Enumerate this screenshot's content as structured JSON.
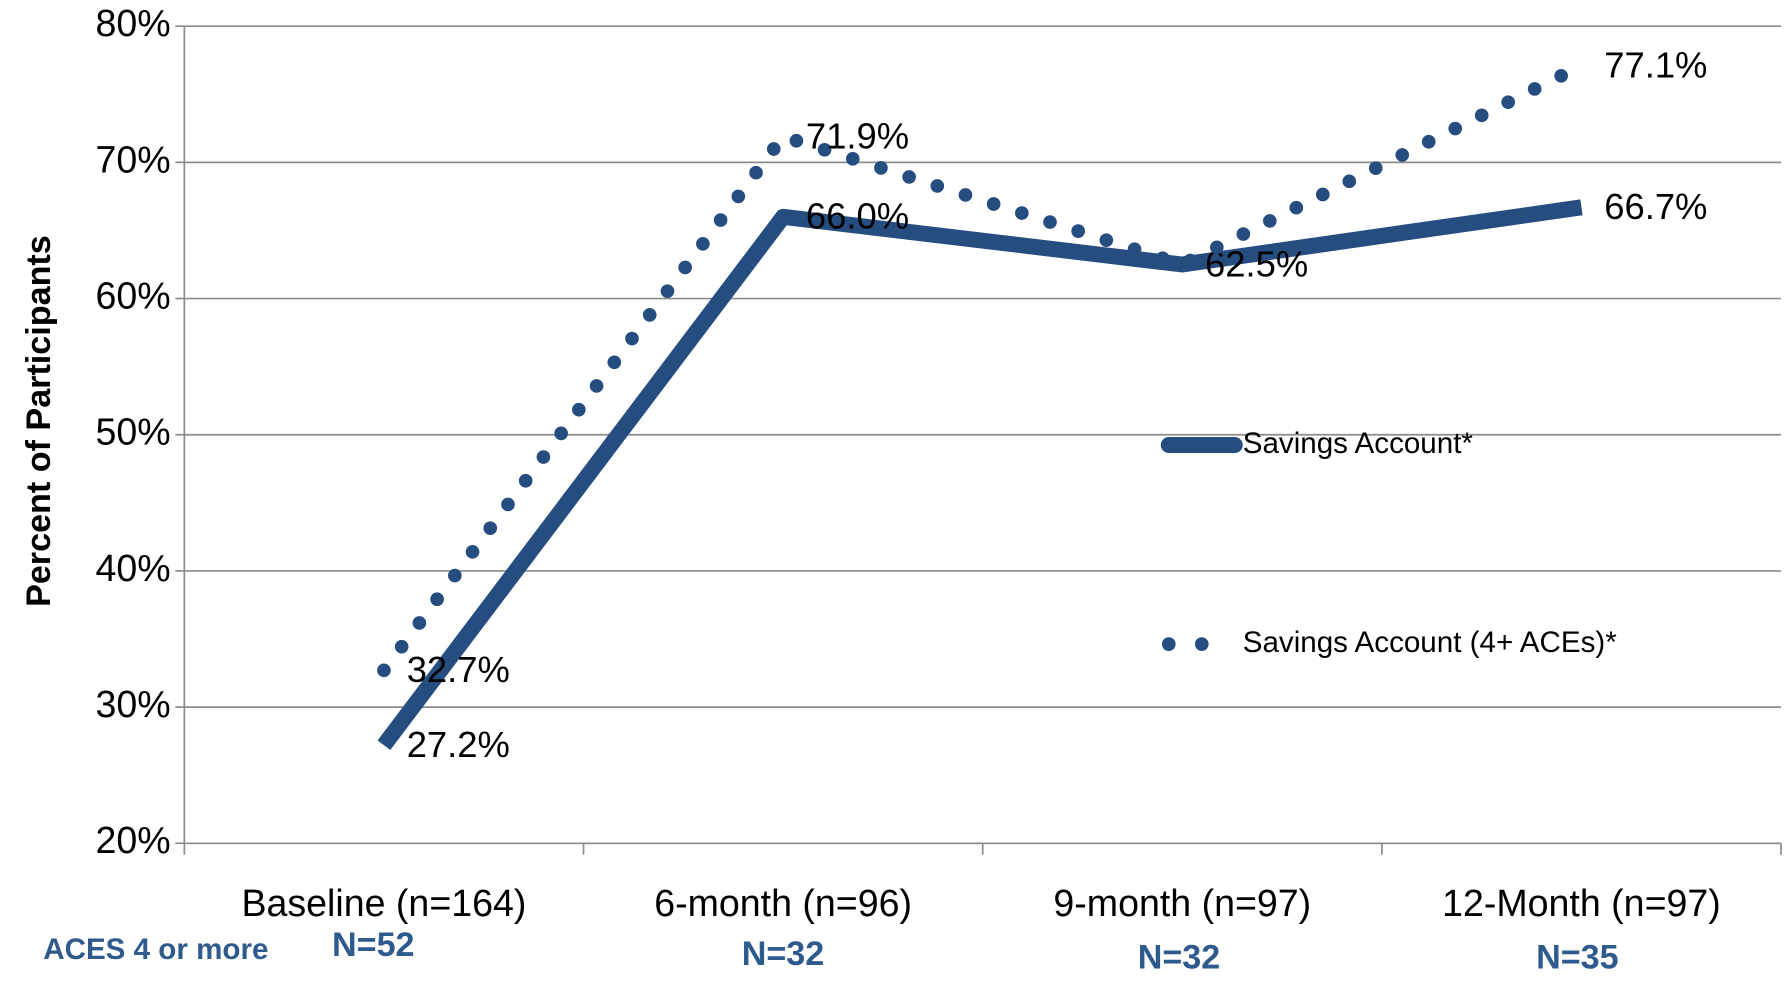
{
  "chart_data": {
    "type": "line",
    "y_label": "Percent of Participants",
    "categories": [
      "Baseline (n=164)",
      "6-month (n=96)",
      "9-month (n=97)",
      "12-Month (n=97)"
    ],
    "series": [
      {
        "name": "Savings Account*",
        "color": "#264d80",
        "style": "solid",
        "values": [
          27.2,
          66.0,
          62.5,
          66.7
        ],
        "value_labels": [
          "27.2%",
          "66.0%",
          "62.5%",
          "66.7%"
        ]
      },
      {
        "name": "Savings Account (4+ ACEs)*",
        "color": "#264d80",
        "style": "dotted",
        "values": [
          32.7,
          71.9,
          62.5,
          77.1
        ],
        "value_labels": [
          "32.7%",
          "71.9%",
          null,
          "77.1%"
        ]
      }
    ],
    "ylim": [
      20,
      80
    ],
    "yticks": [
      {
        "value": 20,
        "label": "20%"
      },
      {
        "value": 30,
        "label": "30%"
      },
      {
        "value": 40,
        "label": "40%"
      },
      {
        "value": 50,
        "label": "50%"
      },
      {
        "value": 60,
        "label": "60%"
      },
      {
        "value": 70,
        "label": "70%"
      },
      {
        "value": 80,
        "label": "80%"
      }
    ],
    "grid": true,
    "legend": "right",
    "annotations": [
      "ACES 4 or more",
      "N=52",
      "N=32",
      "N=32",
      "N=35"
    ]
  }
}
